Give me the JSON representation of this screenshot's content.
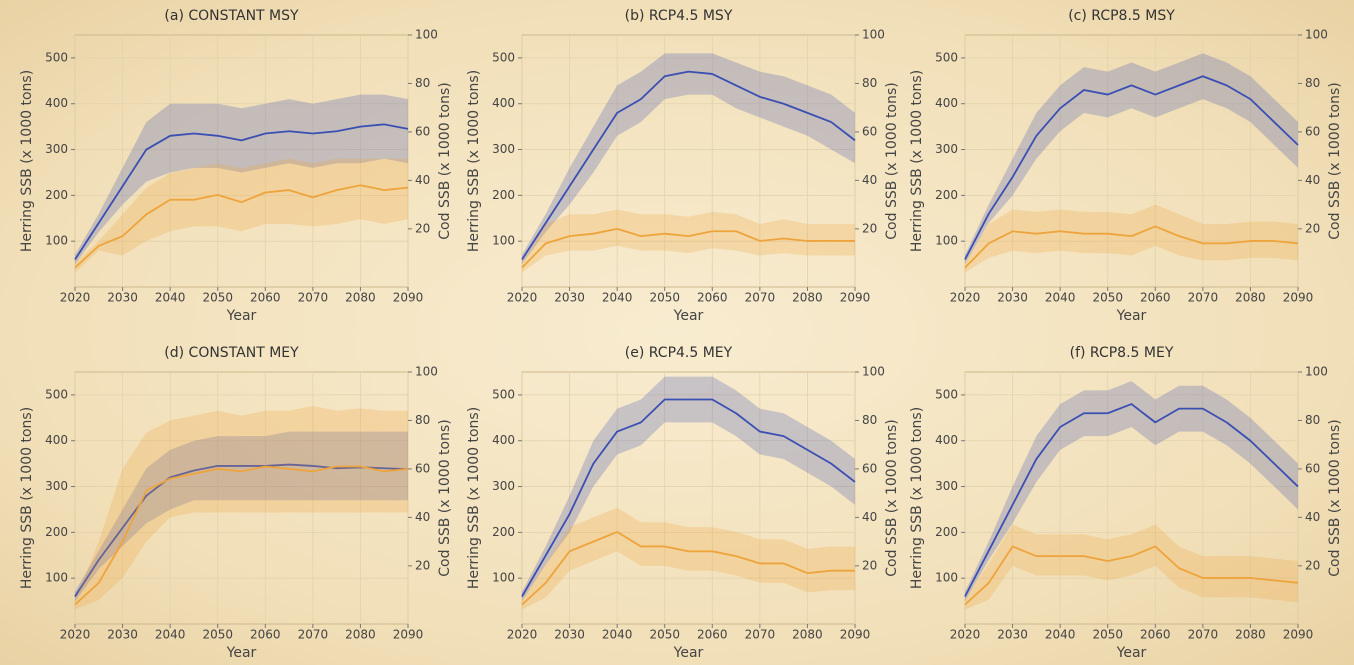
{
  "chart_data": [
    {
      "type": "line",
      "title": "(a) CONSTANT MSY",
      "xlabel": "Year",
      "ylabel": "Herring SSB (x 1000 tons)",
      "y2label": "Cod SSB (x 1000 tons)",
      "xlim": [
        2020,
        2090
      ],
      "xticks": [
        2020,
        2030,
        2040,
        2050,
        2060,
        2070,
        2080,
        2090
      ],
      "ylim": [
        0,
        550
      ],
      "yticks": [
        100,
        200,
        300,
        400,
        500
      ],
      "y2lim": [
        -4,
        100
      ],
      "y2ticks": [
        20,
        40,
        60,
        80,
        100
      ],
      "grid": true,
      "x": [
        2020,
        2025,
        2030,
        2035,
        2040,
        2045,
        2050,
        2055,
        2060,
        2065,
        2070,
        2075,
        2080,
        2085,
        2090
      ],
      "series": [
        {
          "color": "#3b4fb3",
          "values": [
            60,
            140,
            220,
            300,
            330,
            335,
            330,
            320,
            335,
            340,
            335,
            340,
            350,
            355,
            345
          ],
          "upper": [
            70,
            160,
            260,
            360,
            400,
            400,
            400,
            390,
            400,
            410,
            400,
            410,
            420,
            420,
            410
          ],
          "lower": [
            50,
            120,
            180,
            230,
            250,
            260,
            260,
            250,
            260,
            270,
            260,
            270,
            270,
            280,
            270
          ]
        },
        {
          "color": "#eea43c",
          "axis": "y2",
          "values": [
            4,
            13,
            17,
            26,
            32,
            32,
            34,
            31,
            35,
            36,
            33,
            36,
            38,
            36,
            37
          ],
          "upper": [
            6,
            15,
            26,
            37,
            43,
            45,
            47,
            45,
            47,
            49,
            47,
            49,
            49,
            49,
            49
          ],
          "lower": [
            2,
            11,
            9,
            15,
            19,
            21,
            21,
            19,
            22,
            22,
            21,
            22,
            24,
            22,
            24
          ]
        }
      ]
    },
    {
      "type": "line",
      "title": "(b) RCP4.5 MSY",
      "xlabel": "Year",
      "ylabel": "Herring SSB (x 1000 tons)",
      "y2label": "Cod SSB (x 1000 tons)",
      "xlim": [
        2020,
        2090
      ],
      "xticks": [
        2020,
        2030,
        2040,
        2050,
        2060,
        2070,
        2080,
        2090
      ],
      "ylim": [
        0,
        550
      ],
      "yticks": [
        100,
        200,
        300,
        400,
        500
      ],
      "y2lim": [
        -4,
        100
      ],
      "y2ticks": [
        20,
        40,
        60,
        80,
        100
      ],
      "grid": true,
      "x": [
        2020,
        2025,
        2030,
        2035,
        2040,
        2045,
        2050,
        2055,
        2060,
        2065,
        2070,
        2075,
        2080,
        2085,
        2090
      ],
      "series": [
        {
          "color": "#3b4fb3",
          "values": [
            60,
            140,
            220,
            300,
            380,
            410,
            460,
            470,
            465,
            440,
            415,
            400,
            380,
            360,
            320
          ],
          "upper": [
            70,
            160,
            260,
            350,
            440,
            470,
            510,
            510,
            510,
            490,
            470,
            460,
            440,
            420,
            380
          ],
          "lower": [
            50,
            120,
            180,
            250,
            330,
            360,
            410,
            420,
            420,
            390,
            370,
            350,
            330,
            300,
            270
          ]
        },
        {
          "color": "#eea43c",
          "axis": "y2",
          "values": [
            4,
            14,
            17,
            18,
            20,
            17,
            18,
            17,
            19,
            19,
            15,
            16,
            15,
            15,
            15
          ],
          "upper": [
            6,
            22,
            26,
            26,
            28,
            26,
            26,
            25,
            27,
            26,
            22,
            24,
            22,
            22,
            22
          ],
          "lower": [
            2,
            9,
            11,
            11,
            13,
            11,
            11,
            10,
            12,
            11,
            9,
            10,
            9,
            9,
            9
          ]
        }
      ]
    },
    {
      "type": "line",
      "title": "(c) RCP8.5 MSY",
      "xlabel": "Year",
      "ylabel": "Herring SSB (x 1000 tons)",
      "y2label": "Cod SSB (x 1000 tons)",
      "xlim": [
        2020,
        2090
      ],
      "xticks": [
        2020,
        2030,
        2040,
        2050,
        2060,
        2070,
        2080,
        2090
      ],
      "ylim": [
        0,
        550
      ],
      "yticks": [
        100,
        200,
        300,
        400,
        500
      ],
      "y2lim": [
        -4,
        100
      ],
      "y2ticks": [
        20,
        40,
        60,
        80,
        100
      ],
      "grid": true,
      "x": [
        2020,
        2025,
        2030,
        2035,
        2040,
        2045,
        2050,
        2055,
        2060,
        2065,
        2070,
        2075,
        2080,
        2085,
        2090
      ],
      "series": [
        {
          "color": "#3b4fb3",
          "values": [
            60,
            160,
            240,
            330,
            390,
            430,
            420,
            440,
            420,
            440,
            460,
            440,
            410,
            360,
            310
          ],
          "upper": [
            70,
            180,
            280,
            380,
            440,
            480,
            470,
            490,
            470,
            490,
            510,
            490,
            460,
            410,
            360
          ],
          "lower": [
            50,
            140,
            200,
            280,
            340,
            380,
            370,
            390,
            370,
            390,
            410,
            390,
            360,
            310,
            260
          ]
        },
        {
          "color": "#eea43c",
          "axis": "y2",
          "values": [
            4,
            14,
            19,
            18,
            19,
            18,
            18,
            17,
            21,
            17,
            14,
            14,
            15,
            15,
            14
          ],
          "upper": [
            6,
            22,
            28,
            27,
            28,
            27,
            27,
            26,
            30,
            26,
            22,
            22,
            23,
            23,
            22
          ],
          "lower": [
            2,
            8,
            11,
            10,
            11,
            10,
            10,
            9,
            13,
            9,
            7,
            7,
            8,
            8,
            7
          ]
        }
      ]
    },
    {
      "type": "line",
      "title": "(d) CONSTANT MEY",
      "xlabel": "Year",
      "ylabel": "Herring SSB (x 1000 tons)",
      "y2label": "Cod SSB (x 1000 tons)",
      "xlim": [
        2020,
        2090
      ],
      "xticks": [
        2020,
        2030,
        2040,
        2050,
        2060,
        2070,
        2080,
        2090
      ],
      "ylim": [
        0,
        550
      ],
      "yticks": [
        100,
        200,
        300,
        400,
        500
      ],
      "y2lim": [
        -4,
        100
      ],
      "y2ticks": [
        20,
        40,
        60,
        80,
        100
      ],
      "grid": true,
      "x": [
        2020,
        2025,
        2030,
        2035,
        2040,
        2045,
        2050,
        2055,
        2060,
        2065,
        2070,
        2075,
        2080,
        2085,
        2090
      ],
      "series": [
        {
          "color": "#3b4fb3",
          "values": [
            60,
            140,
            210,
            280,
            320,
            335,
            345,
            345,
            345,
            348,
            345,
            340,
            342,
            340,
            338
          ],
          "upper": [
            70,
            160,
            250,
            340,
            380,
            400,
            410,
            410,
            410,
            420,
            420,
            420,
            420,
            420,
            420
          ],
          "lower": [
            50,
            120,
            170,
            220,
            250,
            270,
            270,
            270,
            270,
            270,
            270,
            270,
            270,
            270,
            270
          ]
        },
        {
          "color": "#eea43c",
          "axis": "y2",
          "values": [
            4,
            13,
            30,
            51,
            56,
            58,
            60,
            59,
            61,
            60,
            59,
            61,
            61,
            59,
            60
          ],
          "upper": [
            6,
            30,
            60,
            75,
            80,
            82,
            84,
            82,
            84,
            84,
            86,
            84,
            85,
            84,
            84
          ],
          "lower": [
            2,
            6,
            15,
            30,
            40,
            42,
            42,
            42,
            42,
            42,
            42,
            42,
            42,
            42,
            42
          ]
        }
      ]
    },
    {
      "type": "line",
      "title": "(e) RCP4.5 MEY",
      "xlabel": "Year",
      "ylabel": "Herring SSB (x 1000 tons)",
      "y2label": "Cod SSB (x 1000 tons)",
      "xlim": [
        2020,
        2090
      ],
      "xticks": [
        2020,
        2030,
        2040,
        2050,
        2060,
        2070,
        2080,
        2090
      ],
      "ylim": [
        0,
        550
      ],
      "yticks": [
        100,
        200,
        300,
        400,
        500
      ],
      "y2lim": [
        -4,
        100
      ],
      "y2ticks": [
        20,
        40,
        60,
        80,
        100
      ],
      "grid": true,
      "x": [
        2020,
        2025,
        2030,
        2035,
        2040,
        2045,
        2050,
        2055,
        2060,
        2065,
        2070,
        2075,
        2080,
        2085,
        2090
      ],
      "series": [
        {
          "color": "#3b4fb3",
          "values": [
            60,
            150,
            240,
            350,
            420,
            440,
            490,
            490,
            490,
            460,
            420,
            410,
            380,
            350,
            310
          ],
          "upper": [
            70,
            170,
            280,
            400,
            470,
            490,
            540,
            540,
            540,
            510,
            470,
            460,
            430,
            400,
            360
          ],
          "lower": [
            50,
            130,
            200,
            300,
            370,
            390,
            440,
            440,
            440,
            410,
            370,
            360,
            330,
            300,
            260
          ]
        },
        {
          "color": "#eea43c",
          "axis": "y2",
          "values": [
            4,
            13,
            26,
            30,
            34,
            28,
            28,
            26,
            26,
            24,
            21,
            21,
            17,
            18,
            18
          ],
          "upper": [
            6,
            21,
            36,
            40,
            44,
            38,
            38,
            36,
            36,
            34,
            31,
            31,
            27,
            28,
            28
          ],
          "lower": [
            2,
            7,
            18,
            22,
            26,
            20,
            20,
            18,
            18,
            16,
            13,
            13,
            9,
            10,
            10
          ]
        }
      ]
    },
    {
      "type": "line",
      "title": "(f) RCP8.5 MEY",
      "xlabel": "Year",
      "ylabel": "Herring SSB (x 1000 tons)",
      "y2label": "Cod SSB (x 1000 tons)",
      "xlim": [
        2020,
        2090
      ],
      "xticks": [
        2020,
        2030,
        2040,
        2050,
        2060,
        2070,
        2080,
        2090
      ],
      "ylim": [
        0,
        550
      ],
      "yticks": [
        100,
        200,
        300,
        400,
        500
      ],
      "y2lim": [
        -4,
        100
      ],
      "y2ticks": [
        20,
        40,
        60,
        80,
        100
      ],
      "grid": true,
      "x": [
        2020,
        2025,
        2030,
        2035,
        2040,
        2045,
        2050,
        2055,
        2060,
        2065,
        2070,
        2075,
        2080,
        2085,
        2090
      ],
      "series": [
        {
          "color": "#3b4fb3",
          "values": [
            60,
            160,
            260,
            360,
            430,
            460,
            460,
            480,
            440,
            470,
            470,
            440,
            400,
            350,
            300
          ],
          "upper": [
            70,
            180,
            300,
            410,
            480,
            510,
            510,
            530,
            490,
            520,
            520,
            490,
            450,
            400,
            350
          ],
          "lower": [
            50,
            140,
            220,
            310,
            380,
            410,
            410,
            430,
            390,
            420,
            420,
            390,
            350,
            300,
            250
          ]
        },
        {
          "color": "#eea43c",
          "axis": "y2",
          "values": [
            4,
            13,
            28,
            24,
            24,
            24,
            22,
            24,
            28,
            19,
            15,
            15,
            15,
            14,
            13
          ],
          "upper": [
            6,
            21,
            37,
            33,
            33,
            33,
            31,
            33,
            37,
            28,
            24,
            24,
            24,
            23,
            22
          ],
          "lower": [
            2,
            6,
            20,
            16,
            16,
            16,
            14,
            16,
            20,
            11,
            7,
            7,
            7,
            6,
            5
          ]
        }
      ]
    }
  ]
}
